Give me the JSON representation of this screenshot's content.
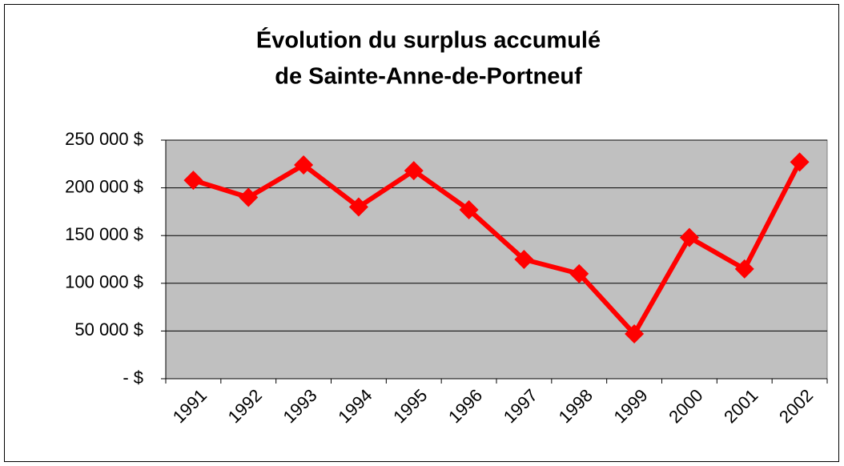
{
  "chart_data": {
    "type": "line",
    "title": [
      "Évolution du surplus accumulé",
      "de Sainte-Anne-de-Portneuf"
    ],
    "categories": [
      "1991",
      "1992",
      "1993",
      "1994",
      "1995",
      "1996",
      "1997",
      "1998",
      "1999",
      "2000",
      "2001",
      "2002"
    ],
    "series": [
      {
        "name": "Surplus accumulé",
        "color": "#ff0000",
        "values": [
          208000,
          190000,
          224000,
          180000,
          218000,
          177000,
          125000,
          110000,
          47000,
          148000,
          115000,
          227000
        ]
      }
    ],
    "ylim": [
      0,
      250000
    ],
    "yticks": [
      {
        "value": 0,
        "label": "-  $"
      },
      {
        "value": 50000,
        "label": "50 000  $"
      },
      {
        "value": 100000,
        "label": "100 000  $"
      },
      {
        "value": 150000,
        "label": "150 000  $"
      },
      {
        "value": 200000,
        "label": "200 000  $"
      },
      {
        "value": 250000,
        "label": "250 000  $"
      }
    ],
    "grid": true,
    "plot_background": "#c0c0c0"
  }
}
